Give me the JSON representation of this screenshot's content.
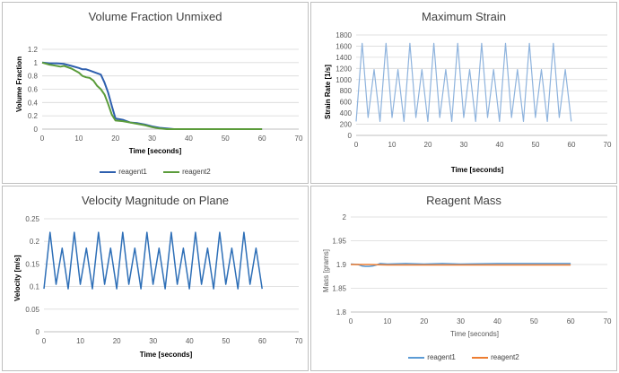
{
  "chart_data": [
    {
      "type": "line",
      "title": "Volume Fraction Unmixed",
      "xlabel": "Time [seconds]",
      "ylabel": "Volume Fraction",
      "xlim": [
        0,
        70
      ],
      "ylim": [
        0,
        1.2
      ],
      "xticks": [
        0,
        10,
        20,
        30,
        40,
        50,
        60,
        70
      ],
      "yticks": [
        0,
        0.2,
        0.4,
        0.6,
        0.8,
        1,
        1.2
      ],
      "grid": true,
      "legend": "bottom",
      "series": [
        {
          "name": "reagent1",
          "color": "#2e5fae",
          "x": [
            0,
            2,
            4,
            6,
            8,
            10,
            11,
            12,
            13,
            14,
            15,
            16,
            17,
            18,
            19,
            20,
            22,
            24,
            26,
            28,
            30,
            32,
            34,
            36,
            40,
            50,
            60
          ],
          "y": [
            1.0,
            0.99,
            0.99,
            0.98,
            0.95,
            0.92,
            0.9,
            0.9,
            0.88,
            0.86,
            0.84,
            0.82,
            0.7,
            0.55,
            0.35,
            0.16,
            0.14,
            0.1,
            0.09,
            0.07,
            0.04,
            0.02,
            0.01,
            0.0,
            0.0,
            0.0,
            0.0
          ]
        },
        {
          "name": "reagent2",
          "color": "#5b9c3b",
          "x": [
            0,
            2,
            3,
            4,
            5,
            6,
            7,
            8,
            9,
            10,
            11,
            12,
            13,
            14,
            15,
            16,
            17,
            18,
            19,
            20,
            22,
            24,
            26,
            28,
            30,
            32,
            34,
            36,
            40,
            50,
            60
          ],
          "y": [
            1.0,
            0.97,
            0.96,
            0.95,
            0.94,
            0.95,
            0.93,
            0.91,
            0.88,
            0.85,
            0.8,
            0.78,
            0.77,
            0.73,
            0.65,
            0.6,
            0.52,
            0.38,
            0.22,
            0.13,
            0.12,
            0.1,
            0.08,
            0.06,
            0.03,
            0.01,
            0.0,
            0.0,
            0.0,
            0.0,
            0.0
          ]
        }
      ]
    },
    {
      "type": "line",
      "title": "Maximum Strain",
      "xlabel": "Time [seconds]",
      "ylabel": "Strain Rate [1/s]",
      "xlim": [
        0,
        70
      ],
      "ylim": [
        0,
        1800
      ],
      "xticks": [
        0,
        10,
        20,
        30,
        40,
        50,
        60,
        70
      ],
      "yticks": [
        0,
        200,
        400,
        600,
        800,
        1000,
        1200,
        1400,
        1600,
        1800
      ],
      "grid": true,
      "series": [
        {
          "name": "",
          "color": "#8eb3dd",
          "pattern": {
            "x_start": 0,
            "x_end": 60,
            "period": 3.33,
            "peaks": [
              1650,
              1180
            ],
            "troughs": [
              250,
              320
            ]
          }
        }
      ]
    },
    {
      "type": "line",
      "title": "Velocity Magnitude on Plane",
      "xlabel": "Time [seconds]",
      "ylabel": "Velocity [m/s]",
      "xlim": [
        0,
        70
      ],
      "ylim": [
        0,
        0.25
      ],
      "xticks": [
        0,
        10,
        20,
        30,
        40,
        50,
        60,
        70
      ],
      "yticks": [
        0,
        0.05,
        0.1,
        0.15,
        0.2,
        0.25
      ],
      "grid": true,
      "series": [
        {
          "name": "",
          "color": "#2e6fb7",
          "pattern": {
            "x_start": 0,
            "x_end": 60,
            "period": 3.33,
            "peaks": [
              0.22,
              0.185
            ],
            "troughs": [
              0.095,
              0.105
            ]
          }
        }
      ]
    },
    {
      "type": "line",
      "title": "Reagent Mass",
      "xlabel": "Time [seconds]",
      "ylabel": "Mass [grams]",
      "xlim": [
        0,
        70
      ],
      "ylim": [
        1.8,
        2.0
      ],
      "xticks": [
        0,
        10,
        20,
        30,
        40,
        50,
        60,
        70
      ],
      "yticks": [
        1.8,
        1.85,
        1.9,
        1.95,
        2.0
      ],
      "grid": true,
      "legend": "bottom",
      "series": [
        {
          "name": "reagent1",
          "color": "#5b9bd5",
          "x": [
            0,
            2,
            3,
            4,
            5,
            6,
            7,
            8,
            10,
            15,
            20,
            25,
            30,
            40,
            50,
            60
          ],
          "y": [
            1.901,
            1.9,
            1.897,
            1.896,
            1.896,
            1.897,
            1.899,
            1.902,
            1.901,
            1.902,
            1.901,
            1.902,
            1.901,
            1.902,
            1.902,
            1.902
          ]
        },
        {
          "name": "reagent2",
          "color": "#ed7d31",
          "x": [
            0,
            5,
            10,
            20,
            30,
            40,
            50,
            60
          ],
          "y": [
            1.9,
            1.9,
            1.899,
            1.899,
            1.899,
            1.899,
            1.899,
            1.899
          ]
        }
      ]
    }
  ]
}
